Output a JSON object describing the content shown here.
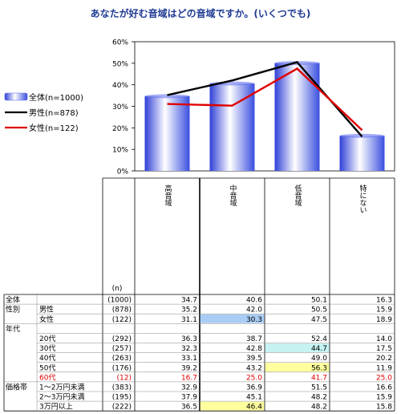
{
  "title": "あなたが好む音域はどの音域ですか。(いくつでも)",
  "n_label": "(n)",
  "categories": [
    "高音域",
    "中音域",
    "低音域",
    "特にない"
  ],
  "legend": [
    {
      "label": "全体(n=1000)",
      "type": "bar"
    },
    {
      "label": "男性(n=878)",
      "type": "line",
      "color": "#000000"
    },
    {
      "label": "女性(n=122)",
      "type": "line",
      "color": "#e00000"
    }
  ],
  "chart_data": {
    "type": "bar",
    "categories": [
      "高音域",
      "中音域",
      "低音域",
      "特にない"
    ],
    "ylim": [
      0,
      60
    ],
    "yticks": [
      "0%",
      "10%",
      "20%",
      "30%",
      "40%",
      "50%",
      "60%"
    ],
    "series": [
      {
        "name": "全体(n=1000)",
        "type": "bar",
        "values": [
          34.7,
          40.6,
          50.1,
          16.3
        ]
      },
      {
        "name": "男性(n=878)",
        "type": "line",
        "color": "#000000",
        "values": [
          35.2,
          42.0,
          50.5,
          15.9
        ]
      },
      {
        "name": "女性(n=122)",
        "type": "line",
        "color": "#e00000",
        "values": [
          31.1,
          30.3,
          47.5,
          18.9
        ]
      }
    ]
  },
  "table": [
    {
      "group": "全体",
      "label": "",
      "n": "(1000)",
      "values": [
        "34.7",
        "40.6",
        "50.1",
        "16.3"
      ],
      "red": false
    },
    {
      "group": "性別",
      "label": "男性",
      "n": "(878)",
      "values": [
        "35.2",
        "42.0",
        "50.5",
        "15.9"
      ],
      "red": false
    },
    {
      "group": "",
      "label": "女性",
      "n": "(122)",
      "values": [
        "31.1",
        "30.3",
        "47.5",
        "18.9"
      ],
      "red": false
    },
    {
      "group": "年代",
      "label": "",
      "n": "",
      "values": [
        "",
        "",
        "",
        ""
      ],
      "red": false
    },
    {
      "group": "",
      "label": "20代",
      "n": "(292)",
      "values": [
        "36.3",
        "38.7",
        "52.4",
        "14.0"
      ],
      "red": false
    },
    {
      "group": "",
      "label": "30代",
      "n": "(257)",
      "values": [
        "32.3",
        "42.8",
        "44.7",
        "17.5"
      ],
      "red": false
    },
    {
      "group": "",
      "label": "40代",
      "n": "(263)",
      "values": [
        "33.1",
        "39.5",
        "49.0",
        "20.2"
      ],
      "red": false
    },
    {
      "group": "",
      "label": "50代",
      "n": "(176)",
      "values": [
        "39.2",
        "43.2",
        "56.3",
        "11.9"
      ],
      "red": false
    },
    {
      "group": "",
      "label": "60代",
      "n": "(12)",
      "values": [
        "16.7",
        "25.0",
        "41.7",
        "25.0"
      ],
      "red": true
    },
    {
      "group": "価格帯",
      "label": "1～2万円未満",
      "n": "(383)",
      "values": [
        "32.9",
        "36.9",
        "51.5",
        "16.6"
      ],
      "red": false
    },
    {
      "group": "",
      "label": "2～3万円未満",
      "n": "(195)",
      "values": [
        "37.9",
        "45.1",
        "48.2",
        "15.9"
      ],
      "red": false
    },
    {
      "group": "",
      "label": "3万円以上",
      "n": "(222)",
      "values": [
        "36.5",
        "46.4",
        "48.2",
        "15.8"
      ],
      "red": false
    }
  ],
  "highlights": [
    {
      "row": 2,
      "col": 1,
      "color": "#a9cdf5"
    },
    {
      "row": 5,
      "col": 2,
      "color": "#c6f2f2"
    },
    {
      "row": 7,
      "col": 2,
      "color": "#ffff9e"
    },
    {
      "row": 11,
      "col": 1,
      "color": "#ffff9e"
    }
  ]
}
